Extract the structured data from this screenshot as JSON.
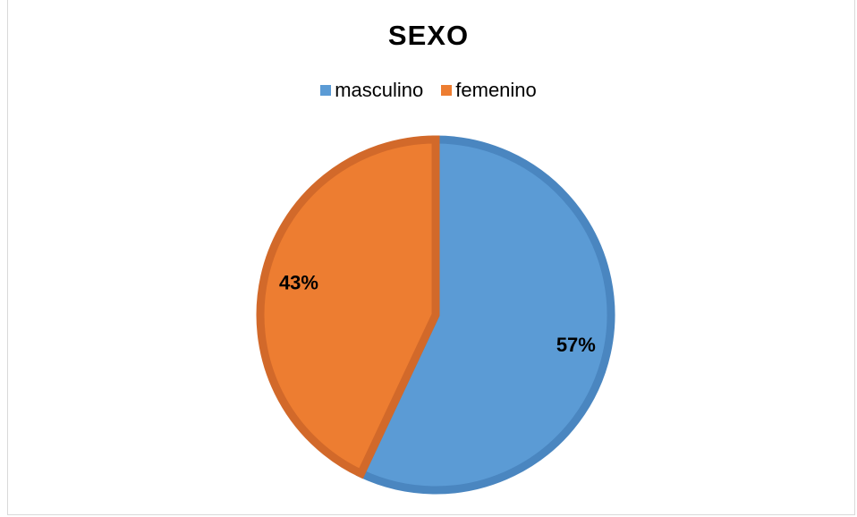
{
  "chart_data": {
    "type": "pie",
    "title": "SEXO",
    "legend_position": "top",
    "categories": [
      "masculino",
      "femenino"
    ],
    "values": [
      57,
      43
    ],
    "data_labels": [
      "57%",
      "43%"
    ],
    "colors": [
      "#5b9bd5",
      "#ed7d31"
    ],
    "border_colors": [
      "#4a86c0",
      "#d2692a"
    ]
  }
}
